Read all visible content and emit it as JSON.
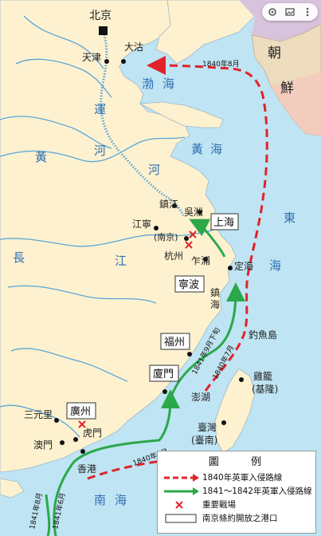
{
  "capital": {
    "name": "北京"
  },
  "cities": {
    "tianjin": "天津",
    "dagu": "大沽",
    "zhenjiang": "鎮江",
    "wusong": "吳淞",
    "jiangning": "江寧",
    "nanjing": "(南京)",
    "hangzhou": "杭州",
    "zhapu": "乍浦",
    "zhenhai": "鎮海",
    "dinghai": "定海",
    "sanyuanli": "三元里",
    "humen": "虎門",
    "macau": "澳門",
    "hongkong": "香港",
    "diaoyu": "釣魚島",
    "penghu": "澎湖",
    "keelung_1": "雞籠",
    "keelung_2": "(基隆)",
    "taiwan_1": "臺灣",
    "taiwan_2": "(臺南)"
  },
  "treaty_ports": {
    "shanghai": "上海",
    "ningbo": "寧波",
    "fuzhou": "福州",
    "xiamen": "廈門",
    "guangzhou": "廣州"
  },
  "seas": {
    "bohai_1": "渤",
    "bohai_2": "海",
    "huanghai_1": "黃",
    "huanghai_2": "海",
    "donghai_1": "東",
    "donghai_2": "海",
    "nanhai_1": "南",
    "nanhai_2": "海"
  },
  "rivers": {
    "canal_1": "運",
    "canal_2": "河",
    "yellow_1": "黃",
    "yellow_2": "河",
    "yangtze_1": "長",
    "yangtze_2": "江"
  },
  "neighbor": {
    "korea_1": "朝",
    "korea_2": "鮮"
  },
  "route_labels": {
    "r_1840_8": "1840年8月",
    "r_1841_9": "1841年9月下旬",
    "r_1840_7_east": "1840年7月",
    "r_1840_7_south": "1840年7月",
    "r_1841_8": "1841年8月",
    "r_1841_6": "1841年6月"
  },
  "legend": {
    "title": "圖 例",
    "items": [
      {
        "label": "1840年英軍入侵路線"
      },
      {
        "label": "1841〜1842年英軍入侵路線"
      },
      {
        "label": "重要戰場"
      },
      {
        "label": "南京條約開放之港口"
      }
    ]
  },
  "colors": {
    "sea": "#bfe4f3",
    "land": "#fdf1cf",
    "korea_land": "#eddcbd",
    "korea_red": "#f2cdbd",
    "korea_purple": "#d8c3dc",
    "river": "#5aa7da",
    "route_1840": "#e0232a",
    "route_1841": "#2aa84a",
    "battle": "#e0232a",
    "port_box": "#ffffff"
  },
  "icons": [
    "lens-icon",
    "image-icon",
    "more-icon"
  ]
}
